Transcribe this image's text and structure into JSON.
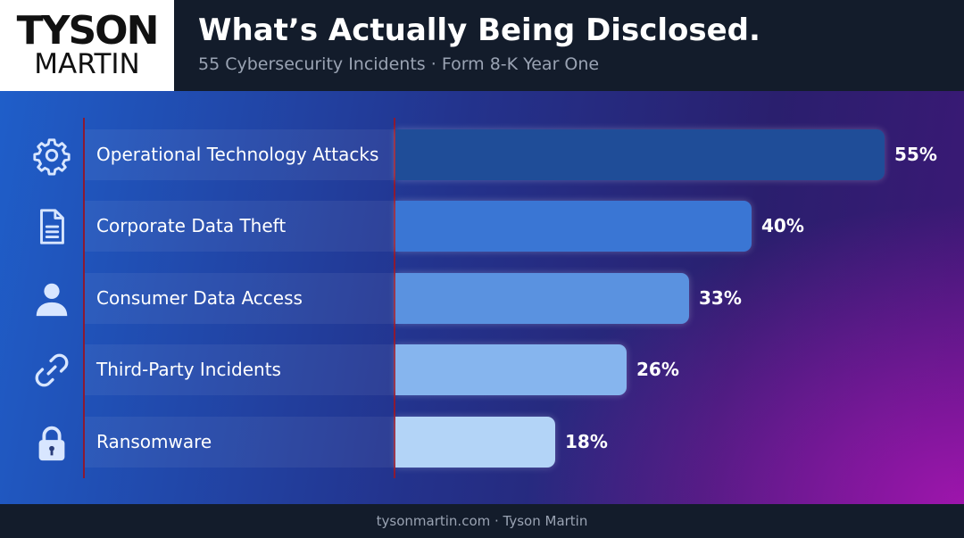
{
  "brand": {
    "logo_top": "TYSON",
    "logo_bottom": "MARTIN"
  },
  "header": {
    "title": "What’s Actually Being Disclosed.",
    "subtitle": "55 Cybersecurity Incidents · Form 8-K Year One"
  },
  "footer": {
    "text": "tysonmartin.com · Tyson Martin"
  },
  "chart_data": {
    "type": "bar",
    "orientation": "horizontal",
    "categories": [
      "Operational Technology Attacks",
      "Corporate Data Theft",
      "Consumer Data Access",
      "Third-Party Incidents",
      "Ransomware"
    ],
    "values": [
      55,
      40,
      33,
      26,
      18
    ],
    "value_labels": [
      "55%",
      "40%",
      "33%",
      "26%",
      "18%"
    ],
    "icons": [
      "gear-icon",
      "document-icon",
      "user-icon",
      "link-icon",
      "lock-icon"
    ],
    "bar_colors": [
      "#1f4d98",
      "#3a76d4",
      "#5a92e0",
      "#86b5ee",
      "#b3d4f7"
    ],
    "xlim": [
      0,
      55
    ],
    "grid": false,
    "legend": "none"
  }
}
